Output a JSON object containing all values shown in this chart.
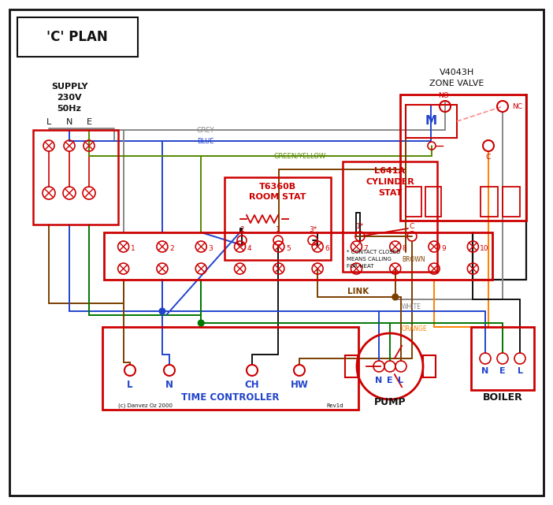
{
  "bg": "#ffffff",
  "red": "#cc0000",
  "blue": "#2244cc",
  "green": "#007700",
  "brown": "#7B3F00",
  "grey": "#888888",
  "orange": "#FF8000",
  "black": "#111111",
  "gy": "#558800",
  "title": "'C' PLAN",
  "supply_lines": [
    "SUPPLY",
    "230V",
    "50Hz"
  ],
  "lne": [
    "L",
    "N",
    "E"
  ],
  "tc_label": "TIME CONTROLLER",
  "tc_terms": [
    "L",
    "N",
    "CH",
    "HW"
  ],
  "rs_label1": "T6360B",
  "rs_label2": "ROOM STAT",
  "cs_label1": "L641A",
  "cs_label2": "CYLINDER",
  "cs_label3": "STAT",
  "zv_label1": "V4043H",
  "zv_label2": "ZONE VALVE",
  "pump_label": "PUMP",
  "boiler_label": "BOILER",
  "link_label": "LINK",
  "note": [
    "* CONTACT CLOSED",
    "MEANS CALLING",
    "FOR HEAT"
  ],
  "copy": "(c) Danvez Oz 2000",
  "rev": "Rev1d",
  "wire_grey": "GREY",
  "wire_blue": "BLUE",
  "wire_gy": "GREEN/YELLOW",
  "wire_brown": "BROWN",
  "wire_white": "WHITE",
  "wire_orange": "ORANGE"
}
